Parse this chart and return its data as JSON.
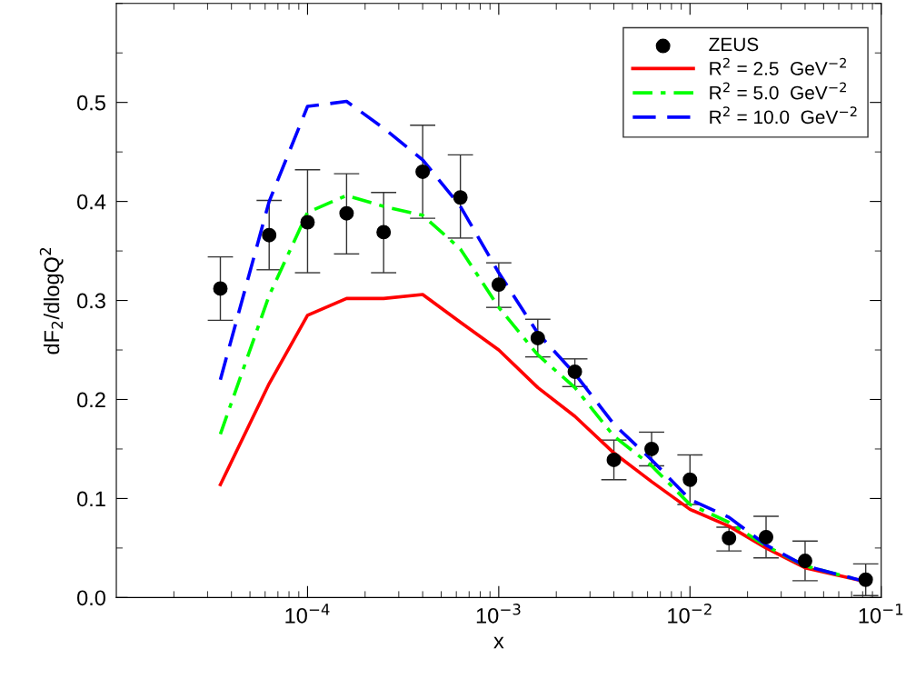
{
  "chart_data": {
    "type": "line",
    "xlabel": "x",
    "ylabel": "dF$_{2}$/dlogQ$^{2}$",
    "x": [
      3.5e-05,
      6.3e-05,
      0.0001,
      0.00016,
      0.00025,
      0.0004,
      0.00063,
      0.001,
      0.0016,
      0.0025,
      0.004,
      0.0063,
      0.01,
      0.016,
      0.025,
      0.04,
      0.083
    ],
    "series": [
      {
        "name": "ZEUS",
        "type": "scatter",
        "color": "#000000",
        "marker": "circle",
        "values": [
          0.312,
          0.366,
          0.379,
          0.388,
          0.369,
          0.43,
          0.404,
          0.316,
          0.262,
          0.228,
          0.139,
          0.15,
          0.119,
          0.06,
          0.061,
          0.037,
          0.018
        ],
        "errors": [
          [
            0.28,
            0.344
          ],
          [
            0.331,
            0.401
          ],
          [
            0.328,
            0.432
          ],
          [
            0.347,
            0.428
          ],
          [
            0.328,
            0.409
          ],
          [
            0.383,
            0.477
          ],
          [
            0.363,
            0.447
          ],
          [
            0.293,
            0.338
          ],
          [
            0.243,
            0.281
          ],
          [
            0.213,
            0.241
          ],
          [
            0.119,
            0.159
          ],
          [
            0.133,
            0.167
          ],
          [
            0.094,
            0.144
          ],
          [
            0.047,
            0.071
          ],
          [
            0.04,
            0.082
          ],
          [
            0.017,
            0.057
          ],
          [
            0.002,
            0.034
          ]
        ]
      },
      {
        "name": "R$^{2}$ = 2.5  GeV$^{−2}$",
        "color": "#ff0000",
        "line_style": "solid",
        "values": [
          0.114,
          0.216,
          0.285,
          0.302,
          0.302,
          0.306,
          0.278,
          0.25,
          0.212,
          0.183,
          0.146,
          0.117,
          0.089,
          0.072,
          0.05,
          0.03,
          0.016
        ]
      },
      {
        "name": "R$^{2}$ = 5.0  GeV$^{−2}$",
        "color": "#00ff00",
        "line_style": "dashdot",
        "values": [
          0.165,
          0.305,
          0.389,
          0.406,
          0.395,
          0.386,
          0.352,
          0.293,
          0.245,
          0.212,
          0.163,
          0.133,
          0.094,
          0.076,
          0.052,
          0.032,
          0.016
        ]
      },
      {
        "name": "R$^{2}$ = 10.0  GeV$^{−2}$",
        "color": "#0000ff",
        "line_style": "dashed",
        "values": [
          0.22,
          0.4,
          0.496,
          0.501,
          0.474,
          0.442,
          0.395,
          0.328,
          0.267,
          0.226,
          0.175,
          0.139,
          0.099,
          0.081,
          0.053,
          0.032,
          0.016
        ]
      }
    ],
    "log": "x",
    "xlim": [
      1e-05,
      0.1
    ],
    "xticks": [
      {
        "value": 0.0001,
        "label": "10$^{−4}$"
      },
      {
        "value": 0.001,
        "label": "10$^{−3}$"
      },
      {
        "value": 0.01,
        "label": "10$^{−2}$"
      },
      {
        "value": 0.1,
        "label": "10$^{−1}$"
      }
    ],
    "ylim": [
      0,
      0.6
    ],
    "yticks": [
      {
        "value": 0,
        "label": "0.0"
      },
      {
        "value": 0.1,
        "label": "0.1"
      },
      {
        "value": 0.2,
        "label": "0.2"
      },
      {
        "value": 0.3,
        "label": "0.3"
      },
      {
        "value": 0.4,
        "label": "0.4"
      },
      {
        "value": 0.5,
        "label": "0.5"
      }
    ],
    "grid": false,
    "legend": "top right"
  }
}
